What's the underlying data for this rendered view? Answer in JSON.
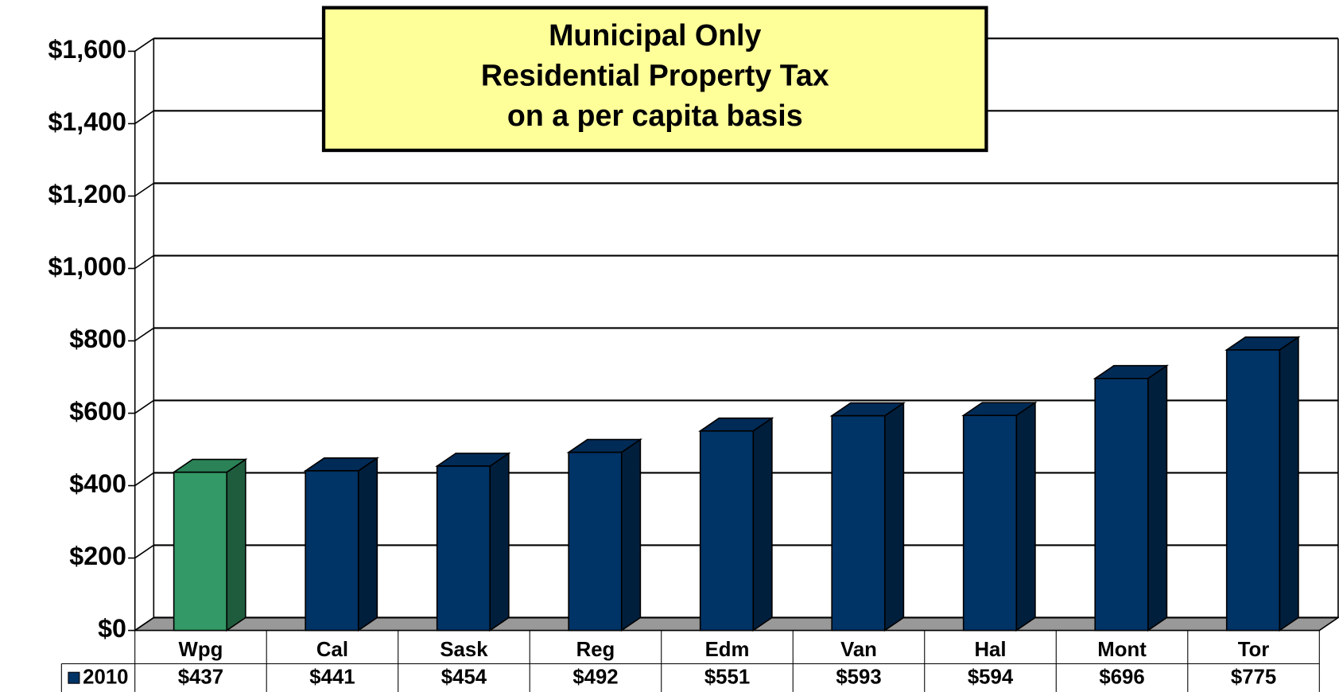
{
  "chart_data": {
    "type": "bar3d",
    "title": [
      "Municipal Only",
      "Residential Property Tax",
      "on a per capita basis"
    ],
    "categories": [
      "Wpg",
      "Cal",
      "Sask",
      "Reg",
      "Edm",
      "Van",
      "Hal",
      "Mont",
      "Tor"
    ],
    "series": [
      {
        "name": "2010",
        "color": "#003366",
        "colors": [
          "#339966",
          "#003366",
          "#003366",
          "#003366",
          "#003366",
          "#003366",
          "#003366",
          "#003366",
          "#003366"
        ],
        "values": [
          437,
          441,
          454,
          492,
          551,
          593,
          594,
          696,
          775
        ],
        "value_labels": [
          "$437",
          "$441",
          "$454",
          "$492",
          "$551",
          "$593",
          "$594",
          "$696",
          "$775"
        ]
      }
    ],
    "ylim": [
      0,
      1600
    ],
    "yticks": [
      {
        "value": 0,
        "label": "$0"
      },
      {
        "value": 200,
        "label": "$200"
      },
      {
        "value": 400,
        "label": "$400"
      },
      {
        "value": 600,
        "label": "$600"
      },
      {
        "value": 800,
        "label": "$800"
      },
      {
        "value": 1000,
        "label": "$1,000"
      },
      {
        "value": 1200,
        "label": "$1,200"
      },
      {
        "value": 1400,
        "label": "$1,400"
      },
      {
        "value": 1600,
        "label": "$1,600"
      }
    ],
    "grid": true
  }
}
